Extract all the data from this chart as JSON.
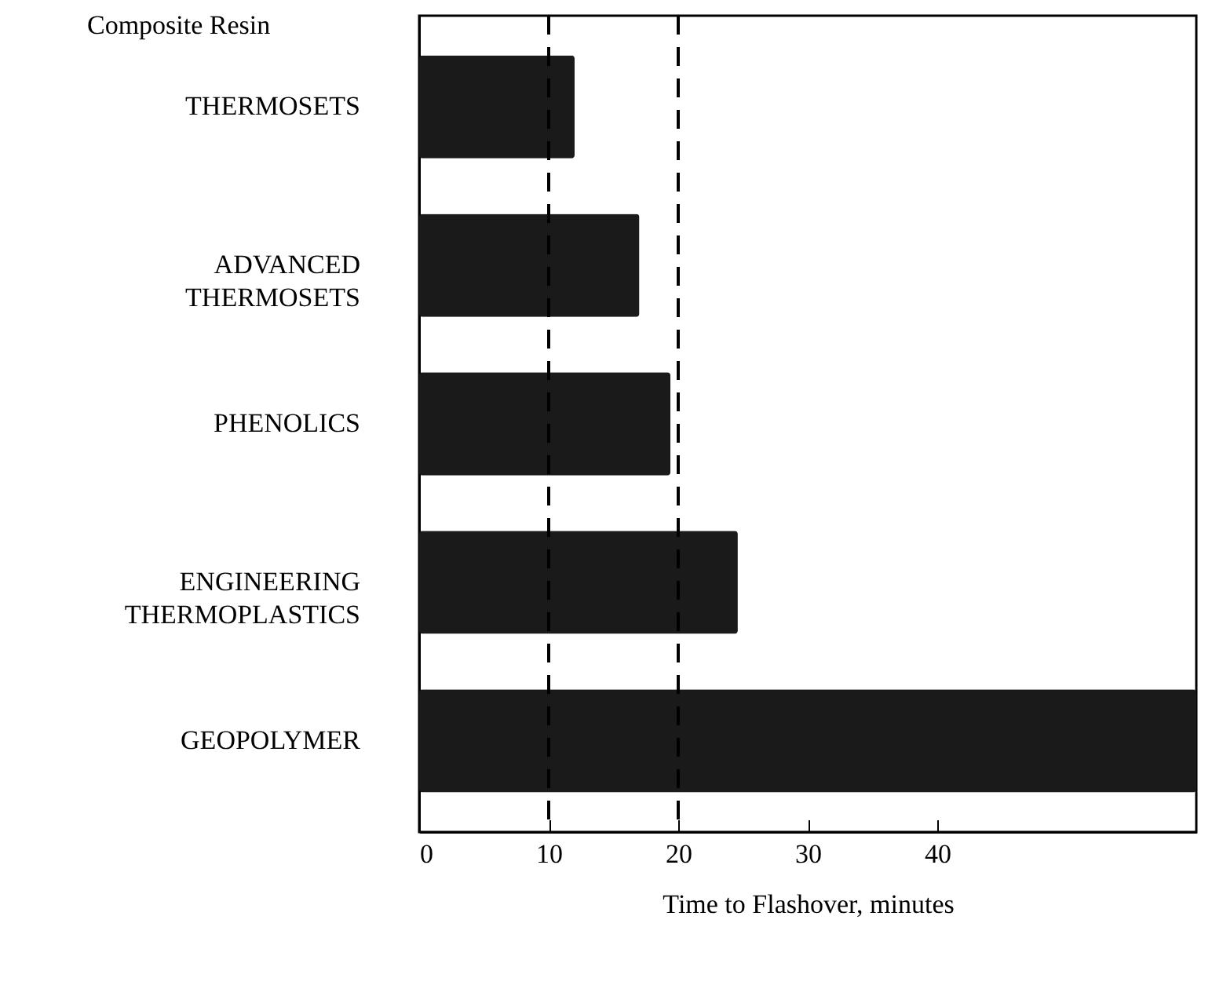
{
  "chart_data": {
    "type": "bar",
    "orientation": "horizontal",
    "categories": [
      "THERMOSETS",
      "ADVANCED THERMOSETS",
      "PHENOLICS",
      "ENGINEERING THERMOPLASTICS",
      "GEOPOLYMER"
    ],
    "values": [
      12,
      17,
      19.4,
      24.6,
      60
    ],
    "color": "#1a1a1a",
    "xlabel": "Time to Flashover, minutes",
    "ylabel": "Composite Resin",
    "xlim": [
      0,
      60
    ],
    "xticks": [
      0,
      10,
      20,
      30,
      40
    ],
    "ref_lines": [
      {
        "axis": "x",
        "value": 10,
        "line_style": "dashed"
      },
      {
        "axis": "x",
        "value": 20,
        "line_style": "dashed"
      }
    ]
  }
}
